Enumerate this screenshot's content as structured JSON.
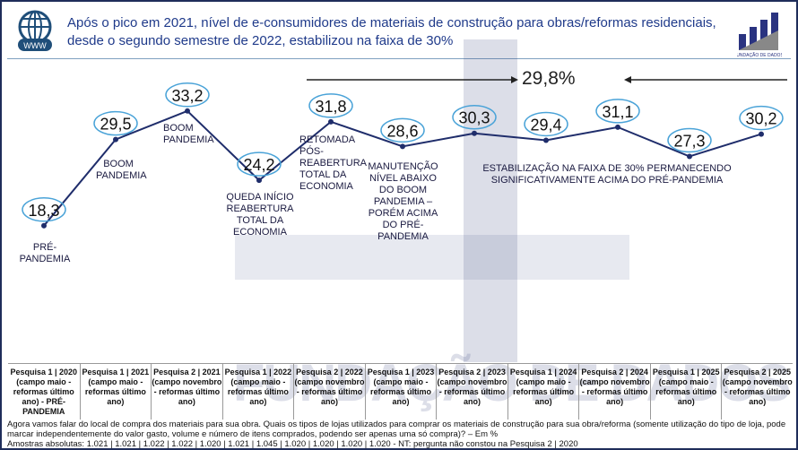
{
  "header": {
    "title": "Após o pico em 2021, nível de e-consumidores de materiais de construção para obras/reformas residenciais, desde o segundo semestre de 2022, estabilizou na faixa de 30%",
    "globe_label": "WWW",
    "logo_text": "FUNDAÇÃO DE DADOS"
  },
  "watermark": "FUNDAÇÃO DE DADOS",
  "chart_data": {
    "type": "line",
    "categories": [
      "Pesquisa 1 | 2020 (campo maio - reformas último ano) - PRÉ-PANDEMIA",
      "Pesquisa 1 | 2021 (campo maio - reformas último ano)",
      "Pesquisa 2 | 2021 (campo novembro - reformas último ano)",
      "Pesquisa 1 | 2022 (campo maio - reformas último ano)",
      "Pesquisa 2 | 2022 (campo novembro - reformas último ano)",
      "Pesquisa 1 | 2023 (campo maio - reformas último ano)",
      "Pesquisa 2 | 2023 (campo novembro - reformas último ano)",
      "Pesquisa 1 | 2024 (campo maio - reformas último ano)",
      "Pesquisa 2 | 2024 (campo novembro - reformas último ano)",
      "Pesquisa 1 | 2025 (campo maio - reformas último ano)",
      "Pesquisa 2 | 2025 (campo novembro - reformas último ano)"
    ],
    "values": [
      18.3,
      29.5,
      33.2,
      24.2,
      31.8,
      28.6,
      30.3,
      29.4,
      31.1,
      27.3,
      30.2
    ],
    "value_labels": [
      "18,3",
      "29,5",
      "33,2",
      "24,2",
      "31,8",
      "28,6",
      "30,3",
      "29,4",
      "31,1",
      "27,3",
      "30,2"
    ],
    "range_label": "29,8%",
    "annotations": [
      "PRÉ-PANDEMIA",
      "BOOM PANDEMIA",
      "BOOM PANDEMIA",
      "QUEDA INÍCIO REABERTURA TOTAL DA ECONOMIA",
      "RETOMADA PÓS-REABERTURA TOTAL DA ECONOMIA",
      "MANUTENÇÃO NÍVEL ABAIXO DO BOOM PANDEMIA – PORÉM ACIMA DO PRÉ-PANDEMIA",
      "ESTABILIZAÇÃO NA FAIXA DE 30% PERMANECENDO SIGNIFICATIVAMENTE ACIMA DO PRÉ-PANDEMIA"
    ],
    "line_color": "#1f2d6b",
    "ellipse_color": "#4aa3d8"
  },
  "footer": {
    "question": "Agora vamos falar do local de compra dos materiais para sua obra. Quais os tipos de lojas utilizados para comprar os materiais de construção para sua obra/reforma (somente utilização do tipo de loja, pode marcar independentemente do valor gasto, volume e número de itens comprados, podendo ser apenas uma só compra)? – Em %",
    "samples": "Amostras absolutas: 1.021 | 1.021 | 1.022 | 1.022 | 1.020 | 1.021 | 1.045 | 1.020 | 1.020 | 1.020 | 1.020 - NT: pergunta não constou na Pesquisa 2 | 2020"
  }
}
